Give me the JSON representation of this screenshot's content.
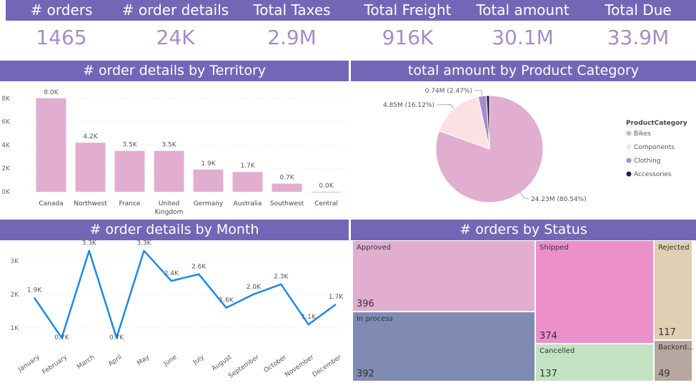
{
  "kpis": [
    {
      "label": "# orders",
      "value": "1465"
    },
    {
      "label": "# order details",
      "value": "24K"
    },
    {
      "label": "Total Taxes",
      "value": "2.9M"
    },
    {
      "label": "Total Freight",
      "value": "916K"
    },
    {
      "label": "Total amount",
      "value": "30.1M"
    },
    {
      "label": "Total Due",
      "value": "33.9M"
    }
  ],
  "colors": {
    "header": "#7466b7",
    "kpi_value": "#a48dc8",
    "bar": "#e1aed0",
    "line": "#1e88e5",
    "pie": [
      "#e1aed0",
      "#fbe1e3",
      "#a48dc8",
      "#231e4a"
    ],
    "treemap": {
      "Approved": "#e1aed0",
      "In process": "#7f8bb3",
      "Shipped": "#ed8fca",
      "Cancelled": "#c3e2c2",
      "Rejected": "#e0cfb3",
      "Backord...": "#b5a6a0"
    }
  },
  "chart_data": [
    {
      "type": "bar",
      "title": "# order details by Territory",
      "categories": [
        "Canada",
        "Northwest",
        "France",
        "United Kingdom",
        "Germany",
        "Australia",
        "Southwest",
        "Central"
      ],
      "category_labels": [
        [
          "Canada"
        ],
        [
          "Northwest"
        ],
        [
          "France"
        ],
        [
          "United",
          "Kingdom"
        ],
        [
          "Germany"
        ],
        [
          "Australia"
        ],
        [
          "Southwest"
        ],
        [
          "Central"
        ]
      ],
      "values": [
        8.0,
        4.2,
        3.5,
        3.5,
        1.9,
        1.7,
        0.7,
        0.0
      ],
      "data_labels": [
        "8.0K",
        "4.2K",
        "3.5K",
        "3.5K",
        "1.9K",
        "1.7K",
        "0.7K",
        "0.0K"
      ],
      "yticks": [
        0,
        2,
        4,
        6,
        8
      ],
      "ytick_labels": [
        "0K",
        "2K",
        "4K",
        "6K",
        "8K"
      ],
      "ylim": [
        0,
        8.6
      ]
    },
    {
      "type": "pie",
      "title": "total amount by Product Category",
      "legend_title": "ProductCategory",
      "categories": [
        "Bikes",
        "Components",
        "Clothing",
        "Accessories"
      ],
      "values": [
        24.23,
        4.85,
        0.74,
        0.28
      ],
      "data_labels": [
        "24.23M (80.54%)",
        "4.85M (16.12%)",
        "0.74M (2.47%)",
        ""
      ],
      "legend_placement": "right"
    },
    {
      "type": "line",
      "title": "# order details by Month",
      "categories": [
        "January",
        "February",
        "March",
        "April",
        "May",
        "June",
        "July",
        "August",
        "September",
        "October",
        "November",
        "December"
      ],
      "values": [
        1.9,
        0.7,
        3.3,
        0.7,
        3.3,
        2.4,
        2.6,
        1.6,
        2.0,
        2.3,
        1.1,
        1.7
      ],
      "data_labels": [
        "1.9K",
        "0.7K",
        "3.3K",
        "0.7K",
        "3.3K",
        "2.4K",
        "2.6K",
        "1.6K",
        "2.0K",
        "2.3K",
        "1.1K",
        "1.7K"
      ],
      "yticks": [
        1,
        2,
        3
      ],
      "ytick_labels": [
        "1K",
        "2K",
        "3K"
      ],
      "ylim": [
        0.4,
        3.4
      ]
    },
    {
      "type": "treemap",
      "title": "# orders by Status",
      "categories": [
        "Approved",
        "In process",
        "Shipped",
        "Cancelled",
        "Rejected",
        "Backord..."
      ],
      "values": [
        396,
        392,
        374,
        137,
        117,
        49
      ]
    }
  ]
}
